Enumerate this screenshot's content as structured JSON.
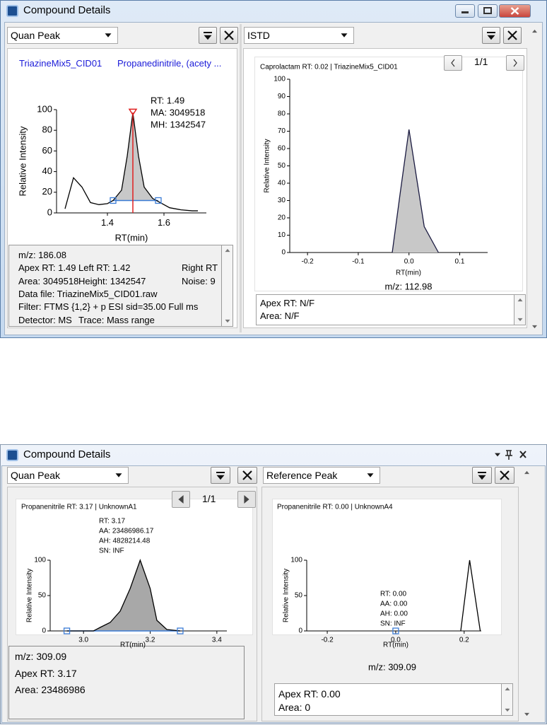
{
  "windows": [
    {
      "title": "Compound Details",
      "panes": [
        {
          "selector": "Quan Peak",
          "header": [
            "TriazineMix5_CID01",
            "Propanedinitrile, (acety ..."
          ],
          "chart": {
            "type": "line",
            "xlabel": "RT(min)",
            "ylabel": "Relative Intensity",
            "annotations": [
              "RT: 1.49",
              "MA: 3049518",
              "MH: 1342547"
            ],
            "x": [
              1.25,
              1.28,
              1.31,
              1.34,
              1.37,
              1.4,
              1.42,
              1.45,
              1.47,
              1.49,
              1.51,
              1.53,
              1.56,
              1.58,
              1.62,
              1.66,
              1.7,
              1.72
            ],
            "values": [
              4,
              34,
              25,
              10,
              8,
              9,
              12,
              22,
              55,
              97,
              55,
              25,
              14,
              11,
              5,
              3,
              2,
              2
            ],
            "color": "#000000",
            "fill": "#c8c8c8",
            "peak_markers": {
              "x": [
                1.42,
                1.58
              ],
              "values": [
                12,
                12
              ],
              "color": "#3a7bd5"
            },
            "apex_x": 1.49,
            "apex_color": "#e02020",
            "xlim": [
              1.22,
              1.75
            ],
            "xticks": [
              1.4,
              1.6
            ],
            "ylim": [
              0,
              100
            ],
            "yticks": [
              0,
              20,
              40,
              60,
              80,
              100
            ]
          },
          "info": [
            [
              "m/z: 186.08"
            ],
            [
              "Apex RT:  1.49",
              "Left RT:  1.42",
              "Right RT"
            ],
            [
              "Area:  3049518",
              "Height:  1342547",
              "Noise:  9"
            ],
            [
              "Data file:  TriazineMix5_CID01.raw"
            ],
            [
              "Filter:  FTMS {1,2}  + p ESI sid=35.00  Full ms"
            ],
            [
              "Detector:  MS",
              "Trace:  Mass range"
            ]
          ]
        },
        {
          "selector": "ISTD",
          "page": "1/1",
          "chart": {
            "type": "line",
            "title": "Caprolactam  RT: 0.02 | TriazineMix5_CID01",
            "footer": "m/z: 112.98",
            "xlabel": "RT(min)",
            "ylabel": "Relative Intensity",
            "x": [
              -0.033,
              -0.017,
              0,
              0.03,
              0.058
            ],
            "values": [
              0,
              35,
              71,
              15,
              0
            ],
            "color": "#1a1a40",
            "fill": "#c8c8c8",
            "xlim": [
              -0.235,
              0.155
            ],
            "xticks": [
              -0.2,
              -0.1,
              {
                "value": 0,
                "label": "0.0"
              },
              0.1
            ],
            "ylim": [
              0,
              100
            ],
            "yticks": [
              0,
              10,
              20,
              30,
              40,
              50,
              60,
              70,
              80,
              90,
              100
            ]
          },
          "info": [
            [
              "Apex RT: N/F"
            ],
            [
              "Area: N/F"
            ]
          ]
        }
      ]
    },
    {
      "title": "Compound Details",
      "panes": [
        {
          "selector": "Quan Peak",
          "page": "1/1",
          "chart": {
            "type": "line",
            "title": "Propanenitrile  RT: 3.17 | UnknownA1",
            "xlabel": "RT(min)",
            "ylabel": "Relative Intensity",
            "annotations": [
              "RT: 3.17",
              "AA: 23486986.17",
              "AH: 4828214.48",
              "SN: INF"
            ],
            "x": [
              2.95,
              3.03,
              3.05,
              3.08,
              3.11,
              3.14,
              3.17,
              3.2,
              3.22,
              3.25,
              3.29
            ],
            "values": [
              0,
              0,
              5,
              12,
              28,
              60,
              100,
              60,
              15,
              2,
              0
            ],
            "color": "#000000",
            "fill": "#a8a8a8",
            "peak_markers": {
              "x": [
                2.95,
                3.29
              ],
              "values": [
                0,
                0
              ],
              "color": "#3a7bd5"
            },
            "xlim": [
              2.9,
              3.43
            ],
            "xticks": [
              {
                "value": 3,
                "label": "3.0"
              },
              3.2,
              3.4
            ],
            "ylim": [
              0,
              100
            ],
            "yticks": [
              0,
              50,
              100
            ]
          },
          "info": [
            [
              "m/z: 309.09"
            ],
            [
              "Apex RT: 3.17"
            ],
            [
              "Area: 23486986"
            ]
          ]
        },
        {
          "selector": "Reference Peak",
          "chart": {
            "type": "line",
            "title": "Propanenitrile  RT: 0.00 | UnknownA4",
            "footer": "m/z: 309.09",
            "xlabel": "RT(min)",
            "ylabel": "Relative Intensity",
            "annotations": [
              "RT: 0.00",
              "AA: 0.00",
              "AH: 0.00",
              "SN: INF"
            ],
            "x": [
              0.19,
              0.216,
              0.247
            ],
            "values": [
              0,
              100,
              0
            ],
            "color": "#000000",
            "fill": null,
            "peak_markers": {
              "x": [
                0
              ],
              "values": [
                0
              ],
              "color": "#3a7bd5"
            },
            "xlim": [
              -0.26,
              0.25
            ],
            "xticks": [
              -0.2,
              {
                "value": 0,
                "label": "0.0"
              },
              0.2
            ],
            "ylim": [
              0,
              100
            ],
            "yticks": [
              0,
              50,
              100
            ]
          },
          "info": [
            [
              "Apex RT: 0.00"
            ],
            [
              "Area: 0"
            ]
          ]
        }
      ]
    }
  ]
}
